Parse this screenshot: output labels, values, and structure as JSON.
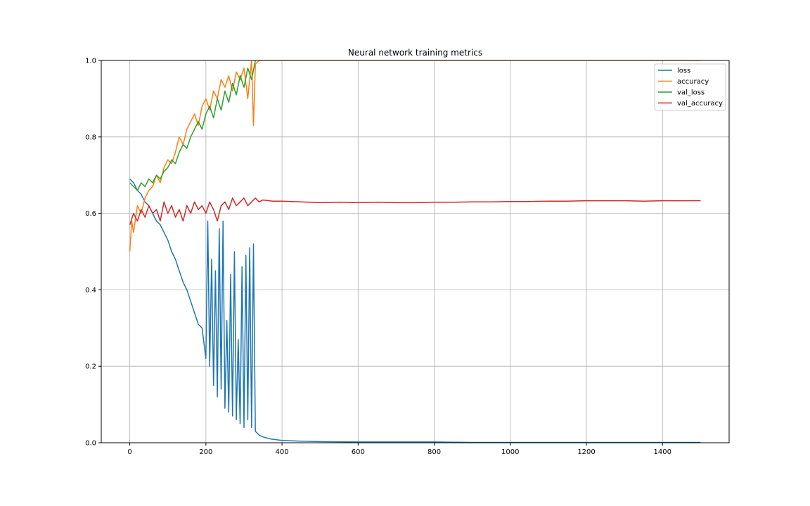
{
  "chart_data": {
    "type": "line",
    "title": "Neural network training metrics",
    "xlabel": "",
    "ylabel": "",
    "xlim": [
      -75,
      1575
    ],
    "ylim": [
      0,
      1
    ],
    "x_ticks": [
      0,
      200,
      400,
      600,
      800,
      1000,
      1200,
      1400
    ],
    "x_tick_labels": [
      "0",
      "200",
      "400",
      "600",
      "800",
      "1000",
      "1200",
      "1400"
    ],
    "y_ticks": [
      0,
      0.2,
      0.4,
      0.6,
      0.8,
      1.0
    ],
    "y_tick_labels": [
      "0.0",
      "0.2",
      "0.4",
      "0.6",
      "0.8",
      "1.0"
    ],
    "grid": true,
    "legend_position": "top-right",
    "series": [
      {
        "name": "loss",
        "color": "#1f77b4",
        "x": [
          0,
          10,
          20,
          30,
          40,
          50,
          60,
          70,
          80,
          90,
          100,
          110,
          120,
          130,
          140,
          150,
          160,
          170,
          180,
          190,
          200,
          205,
          210,
          215,
          220,
          225,
          230,
          235,
          240,
          245,
          250,
          255,
          260,
          265,
          270,
          275,
          280,
          285,
          290,
          295,
          300,
          305,
          310,
          315,
          320,
          325,
          330,
          340,
          350,
          370,
          400,
          450,
          500,
          600,
          700,
          800,
          900,
          1000,
          1100,
          1200,
          1300,
          1400,
          1500
        ],
        "y": [
          0.69,
          0.68,
          0.66,
          0.65,
          0.63,
          0.62,
          0.6,
          0.58,
          0.57,
          0.55,
          0.53,
          0.5,
          0.48,
          0.45,
          0.42,
          0.4,
          0.37,
          0.34,
          0.31,
          0.3,
          0.22,
          0.58,
          0.2,
          0.48,
          0.15,
          0.45,
          0.12,
          0.56,
          0.14,
          0.58,
          0.09,
          0.32,
          0.08,
          0.44,
          0.07,
          0.5,
          0.06,
          0.27,
          0.05,
          0.46,
          0.04,
          0.49,
          0.06,
          0.51,
          0.04,
          0.52,
          0.03,
          0.02,
          0.015,
          0.01,
          0.006,
          0.004,
          0.003,
          0.002,
          0.002,
          0.002,
          0.001,
          0.001,
          0.001,
          0.001,
          0.001,
          0.001,
          0.001
        ]
      },
      {
        "name": "accuracy",
        "color": "#ff7f0e",
        "x": [
          0,
          5,
          10,
          20,
          30,
          40,
          50,
          60,
          70,
          80,
          90,
          100,
          110,
          120,
          130,
          140,
          150,
          160,
          170,
          180,
          190,
          200,
          210,
          220,
          230,
          240,
          250,
          260,
          270,
          280,
          290,
          300,
          310,
          320,
          325,
          330,
          340,
          350,
          400,
          450,
          500,
          600,
          700,
          800,
          900,
          1000,
          1100,
          1200,
          1300,
          1400,
          1500
        ],
        "y": [
          0.5,
          0.58,
          0.55,
          0.62,
          0.6,
          0.64,
          0.66,
          0.67,
          0.7,
          0.68,
          0.72,
          0.74,
          0.73,
          0.76,
          0.8,
          0.78,
          0.82,
          0.84,
          0.86,
          0.83,
          0.88,
          0.9,
          0.87,
          0.92,
          0.9,
          0.95,
          0.93,
          0.96,
          0.92,
          0.97,
          0.95,
          0.98,
          0.9,
          1.0,
          0.83,
          0.99,
          1.0,
          1.0,
          1.0,
          1.0,
          1.0,
          1.0,
          1.0,
          1.0,
          1.0,
          1.0,
          1.0,
          1.0,
          1.0,
          1.0,
          1.0
        ]
      },
      {
        "name": "val_loss",
        "color": "#2ca02c",
        "x": [
          0,
          10,
          20,
          30,
          40,
          50,
          60,
          70,
          80,
          90,
          100,
          110,
          120,
          130,
          140,
          150,
          160,
          170,
          180,
          190,
          200,
          210,
          220,
          230,
          240,
          250,
          260,
          270,
          280,
          290,
          300,
          310,
          320,
          330
        ],
        "y": [
          0.68,
          0.67,
          0.66,
          0.68,
          0.67,
          0.69,
          0.68,
          0.7,
          0.69,
          0.71,
          0.72,
          0.74,
          0.73,
          0.76,
          0.78,
          0.77,
          0.8,
          0.82,
          0.84,
          0.82,
          0.86,
          0.88,
          0.85,
          0.9,
          0.87,
          0.92,
          0.89,
          0.94,
          0.91,
          0.96,
          0.93,
          0.98,
          0.95,
          1.0
        ]
      },
      {
        "name": "val_accuracy",
        "color": "#d62728",
        "x": [
          0,
          10,
          20,
          30,
          40,
          50,
          60,
          70,
          80,
          90,
          100,
          110,
          120,
          130,
          140,
          150,
          160,
          170,
          180,
          190,
          200,
          210,
          220,
          230,
          240,
          250,
          260,
          270,
          280,
          290,
          300,
          310,
          320,
          330,
          340,
          350,
          375,
          400,
          450,
          500,
          550,
          600,
          650,
          700,
          750,
          800,
          850,
          900,
          950,
          1000,
          1050,
          1100,
          1150,
          1200,
          1250,
          1300,
          1350,
          1400,
          1450,
          1500
        ],
        "y": [
          0.57,
          0.6,
          0.58,
          0.61,
          0.59,
          0.62,
          0.6,
          0.61,
          0.58,
          0.63,
          0.6,
          0.62,
          0.59,
          0.61,
          0.58,
          0.62,
          0.6,
          0.63,
          0.61,
          0.62,
          0.6,
          0.63,
          0.61,
          0.58,
          0.62,
          0.63,
          0.61,
          0.64,
          0.62,
          0.63,
          0.64,
          0.62,
          0.63,
          0.64,
          0.63,
          0.635,
          0.632,
          0.632,
          0.63,
          0.628,
          0.629,
          0.628,
          0.629,
          0.628,
          0.628,
          0.629,
          0.629,
          0.63,
          0.63,
          0.631,
          0.631,
          0.632,
          0.632,
          0.633,
          0.633,
          0.633,
          0.632,
          0.633,
          0.633,
          0.633
        ]
      }
    ]
  }
}
